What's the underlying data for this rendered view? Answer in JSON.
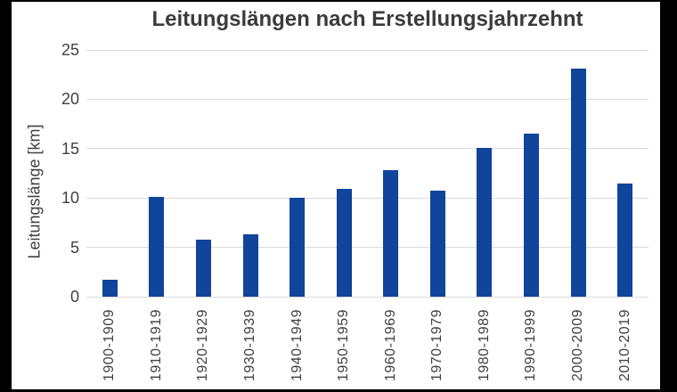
{
  "colors": {
    "bar": "#11449b",
    "gridline": "#d9d9d9",
    "text": "#404040",
    "title_text": "#3b3b3b",
    "background": "#ffffff",
    "frame": "#000000"
  },
  "chart_data": {
    "type": "bar",
    "title": "Leitungslängen nach Erstellungsjahrzehnt",
    "xlabel": "",
    "ylabel": "Leitungslänge [km]",
    "categories": [
      "1900-1909",
      "1910-1919",
      "1920-1929",
      "1930-1939",
      "1940-1949",
      "1950-1959",
      "1960-1969",
      "1970-1979",
      "1980-1989",
      "1990-1999",
      "2000-2009",
      "2010-2019"
    ],
    "values": [
      1.7,
      10.1,
      5.8,
      6.3,
      10.0,
      10.9,
      12.8,
      10.7,
      15.1,
      16.5,
      23.1,
      11.5
    ],
    "ylim": [
      0,
      25
    ],
    "y_ticks": [
      0,
      5,
      10,
      15,
      20,
      25
    ],
    "grid": true,
    "legend": "none",
    "x_tick_rotation_degrees": 90
  }
}
